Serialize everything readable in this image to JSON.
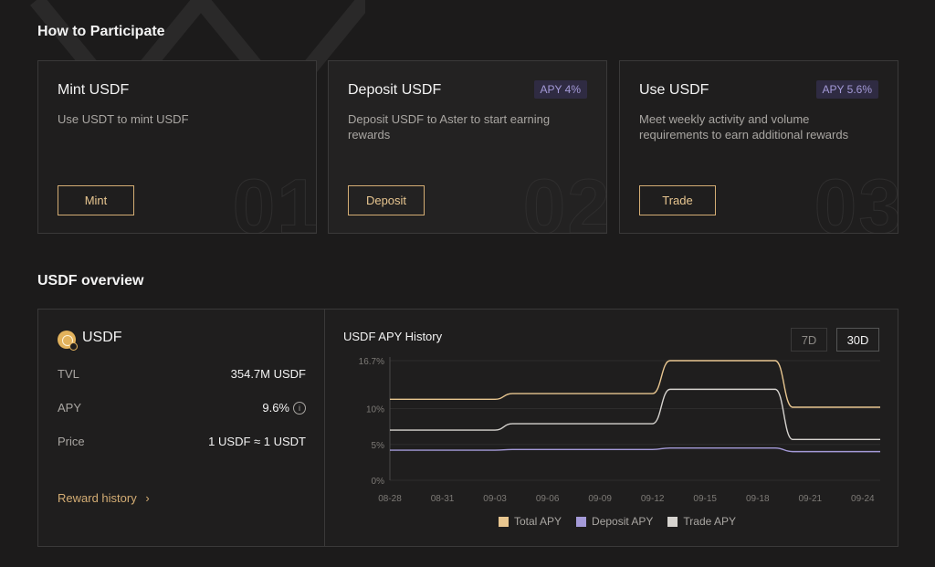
{
  "how_to": {
    "title": "How to Participate",
    "cards": [
      {
        "title": "Mint USDF",
        "desc": "Use USDT to mint USDF",
        "badge": "",
        "button": "Mint",
        "num": "01"
      },
      {
        "title": "Deposit USDF",
        "desc": "Deposit USDF to Aster to start earning rewards",
        "badge": "APY 4%",
        "button": "Deposit",
        "num": "02"
      },
      {
        "title": "Use USDF",
        "desc": "Meet weekly activity and volume requirements to earn additional rewards",
        "badge": "APY 5.6%",
        "button": "Trade",
        "num": "03"
      }
    ]
  },
  "overview": {
    "title": "USDF overview",
    "asset": "USDF",
    "rows": [
      {
        "label": "TVL",
        "value": "354.7M USDF"
      },
      {
        "label": "APY",
        "value": "9.6%"
      },
      {
        "label": "Price",
        "value": "1 USDF ≈ 1 USDT"
      }
    ],
    "reward_link": "Reward history",
    "chevron": "›",
    "info_glyph": "i"
  },
  "chart_panel": {
    "title": "USDF APY History",
    "ranges": [
      "7D",
      "30D"
    ],
    "selected_range": "30D"
  },
  "chart_data": {
    "type": "line",
    "title": "USDF APY History",
    "x_ticks": [
      "08-28",
      "08-31",
      "09-03",
      "09-06",
      "09-09",
      "09-12",
      "09-15",
      "09-18",
      "09-21",
      "09-24"
    ],
    "y_ticks": [
      "0%",
      "5%",
      "10%",
      "16.7%"
    ],
    "ylim": [
      0,
      16.7
    ],
    "x": [
      "08-28",
      "08-29",
      "08-30",
      "08-31",
      "09-01",
      "09-02",
      "09-03",
      "09-04",
      "09-05",
      "09-06",
      "09-07",
      "09-08",
      "09-09",
      "09-10",
      "09-11",
      "09-12",
      "09-13",
      "09-14",
      "09-15",
      "09-16",
      "09-17",
      "09-18",
      "09-19",
      "09-20",
      "09-21",
      "09-22",
      "09-23",
      "09-24",
      "09-25"
    ],
    "series": [
      {
        "name": "Total APY",
        "color": "#e8c690",
        "values": [
          11.3,
          11.3,
          11.3,
          11.3,
          11.3,
          11.3,
          11.3,
          12.1,
          12.1,
          12.1,
          12.1,
          12.1,
          12.1,
          12.1,
          12.1,
          12.1,
          16.7,
          16.7,
          16.7,
          16.7,
          16.7,
          16.7,
          16.7,
          10.2,
          10.2,
          10.2,
          10.2,
          10.2,
          10.2
        ]
      },
      {
        "name": "Deposit APY",
        "color": "#a49ad8",
        "values": [
          4.2,
          4.2,
          4.2,
          4.2,
          4.2,
          4.2,
          4.2,
          4.3,
          4.3,
          4.3,
          4.3,
          4.3,
          4.3,
          4.3,
          4.3,
          4.3,
          4.5,
          4.5,
          4.5,
          4.5,
          4.5,
          4.5,
          4.5,
          4.0,
          4.0,
          4.0,
          4.0,
          4.0,
          4.0
        ]
      },
      {
        "name": "Trade APY",
        "color": "#d6d3cf",
        "values": [
          7.0,
          7.0,
          7.0,
          7.0,
          7.0,
          7.0,
          7.0,
          7.9,
          7.9,
          7.9,
          7.9,
          7.9,
          7.9,
          7.9,
          7.9,
          7.9,
          12.7,
          12.7,
          12.7,
          12.7,
          12.7,
          12.7,
          12.7,
          5.7,
          5.7,
          5.7,
          5.7,
          5.7,
          5.7
        ]
      }
    ],
    "grid_color": "#2d2c2c",
    "axis_color": "#4a4848",
    "tick_color": "#7d7a76"
  }
}
